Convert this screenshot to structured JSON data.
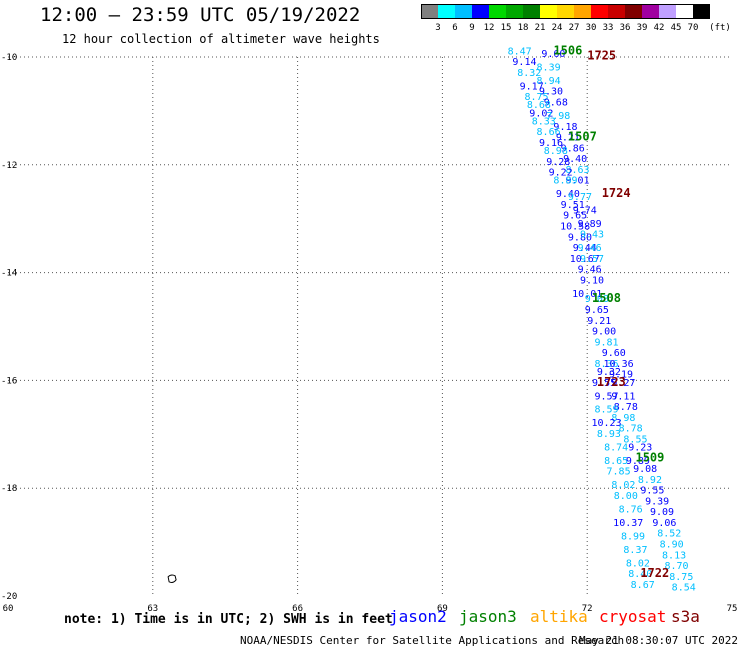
{
  "title": "12:00 – 23:59 UTC 05/19/2022",
  "subtitle": "12 hour collection of altimeter wave heights",
  "colorbar": {
    "unit": "(ft)",
    "colors": [
      "#808080",
      "#00ffff",
      "#00bfff",
      "#0000ff",
      "#00d800",
      "#00a800",
      "#008000",
      "#ffff00",
      "#ffd700",
      "#ffa500",
      "#ff0000",
      "#c80000",
      "#800000",
      "#a000a0",
      "#c0a0ff",
      "#ffffff",
      "#000000"
    ],
    "labels": [
      "3",
      "6",
      "9",
      "12",
      "15",
      "18",
      "21",
      "24",
      "27",
      "30",
      "33",
      "36",
      "39",
      "42",
      "45",
      "70"
    ]
  },
  "map": {
    "lon_ticks": [
      "60",
      "63",
      "66",
      "69",
      "72",
      "75"
    ],
    "lat_ticks": [
      "-10",
      "-12",
      "-14",
      "-16",
      "-18",
      "-20"
    ],
    "lon_min": 60,
    "lon_max": 75,
    "lat_min": -20,
    "lat_max": -10
  },
  "time_labels": [
    {
      "text": "1506",
      "lon": 71.6,
      "lat": -9.95,
      "color": "#008000"
    },
    {
      "text": "1725",
      "lon": 72.3,
      "lat": -10.05,
      "color": "#800000"
    },
    {
      "text": "1507",
      "lon": 71.9,
      "lat": -11.55,
      "color": "#008000"
    },
    {
      "text": "1724",
      "lon": 72.6,
      "lat": -12.6,
      "color": "#800000"
    },
    {
      "text": "1508",
      "lon": 72.4,
      "lat": -14.55,
      "color": "#008000"
    },
    {
      "text": "1723",
      "lon": 72.5,
      "lat": -16.1,
      "color": "#800000"
    },
    {
      "text": "1509",
      "lon": 73.3,
      "lat": -17.5,
      "color": "#008000"
    },
    {
      "text": "1722",
      "lon": 73.4,
      "lat": -19.65,
      "color": "#800000"
    }
  ],
  "wave_heights": [
    {
      "v": "8.47",
      "lon": 70.6,
      "lat": -9.95,
      "c": "#00bfff"
    },
    {
      "v": "9.60",
      "lon": 71.3,
      "lat": -10.0,
      "c": "#0000ff"
    },
    {
      "v": "9.14",
      "lon": 70.7,
      "lat": -10.15,
      "c": "#0000ff"
    },
    {
      "v": "8.39",
      "lon": 71.2,
      "lat": -10.25,
      "c": "#00bfff"
    },
    {
      "v": "8.32",
      "lon": 70.8,
      "lat": -10.35,
      "c": "#00bfff"
    },
    {
      "v": "8.94",
      "lon": 71.2,
      "lat": -10.5,
      "c": "#00bfff"
    },
    {
      "v": "9.17",
      "lon": 70.85,
      "lat": -10.6,
      "c": "#0000ff"
    },
    {
      "v": "9.30",
      "lon": 71.25,
      "lat": -10.7,
      "c": "#0000ff"
    },
    {
      "v": "8.75",
      "lon": 70.95,
      "lat": -10.8,
      "c": "#00bfff"
    },
    {
      "v": "9.68",
      "lon": 71.35,
      "lat": -10.9,
      "c": "#0000ff"
    },
    {
      "v": "8.68",
      "lon": 71.0,
      "lat": -10.95,
      "c": "#00bfff"
    },
    {
      "v": "9.02",
      "lon": 71.05,
      "lat": -11.1,
      "c": "#0000ff"
    },
    {
      "v": "7.98",
      "lon": 71.4,
      "lat": -11.15,
      "c": "#00bfff"
    },
    {
      "v": "8.33",
      "lon": 71.1,
      "lat": -11.25,
      "c": "#00bfff"
    },
    {
      "v": "9.18",
      "lon": 71.55,
      "lat": -11.35,
      "c": "#0000ff"
    },
    {
      "v": "8.66",
      "lon": 71.2,
      "lat": -11.45,
      "c": "#00bfff"
    },
    {
      "v": "9.21",
      "lon": 71.6,
      "lat": -11.55,
      "c": "#0000ff"
    },
    {
      "v": "9.16",
      "lon": 71.25,
      "lat": -11.65,
      "c": "#0000ff"
    },
    {
      "v": "9.86",
      "lon": 71.7,
      "lat": -11.75,
      "c": "#0000ff"
    },
    {
      "v": "8.98",
      "lon": 71.35,
      "lat": -11.8,
      "c": "#00bfff"
    },
    {
      "v": "9.40",
      "lon": 71.75,
      "lat": -11.95,
      "c": "#0000ff"
    },
    {
      "v": "9.28",
      "lon": 71.4,
      "lat": -12.0,
      "c": "#0000ff"
    },
    {
      "v": "8.63",
      "lon": 71.8,
      "lat": -12.15,
      "c": "#00bfff"
    },
    {
      "v": "9.22",
      "lon": 71.45,
      "lat": -12.2,
      "c": "#0000ff"
    },
    {
      "v": "9.01",
      "lon": 71.8,
      "lat": -12.35,
      "c": "#0000ff"
    },
    {
      "v": "8.89",
      "lon": 71.55,
      "lat": -12.35,
      "c": "#00bfff"
    },
    {
      "v": "9.40",
      "lon": 71.6,
      "lat": -12.6,
      "c": "#0000ff"
    },
    {
      "v": "9.77",
      "lon": 71.85,
      "lat": -12.65,
      "c": "#00bfff"
    },
    {
      "v": "9.51",
      "lon": 71.7,
      "lat": -12.8,
      "c": "#0000ff"
    },
    {
      "v": "9.74",
      "lon": 71.95,
      "lat": -12.9,
      "c": "#0000ff"
    },
    {
      "v": "9.65",
      "lon": 71.75,
      "lat": -13.0,
      "c": "#0000ff"
    },
    {
      "v": "10.58",
      "lon": 71.75,
      "lat": -13.2,
      "c": "#0000ff"
    },
    {
      "v": "9.89",
      "lon": 72.05,
      "lat": -13.15,
      "c": "#0000ff"
    },
    {
      "v": "9.80",
      "lon": 71.85,
      "lat": -13.4,
      "c": "#0000ff"
    },
    {
      "v": "9.43",
      "lon": 72.1,
      "lat": -13.35,
      "c": "#00bfff"
    },
    {
      "v": "9.44",
      "lon": 71.95,
      "lat": -13.6,
      "c": "#0000ff"
    },
    {
      "v": "9.46",
      "lon": 72.05,
      "lat": -13.6,
      "c": "#00bfff"
    },
    {
      "v": "10.67",
      "lon": 71.95,
      "lat": -13.8,
      "c": "#0000ff"
    },
    {
      "v": "9.57",
      "lon": 72.1,
      "lat": -13.8,
      "c": "#00bfff"
    },
    {
      "v": "9.46",
      "lon": 72.05,
      "lat": -14.0,
      "c": "#0000ff"
    },
    {
      "v": "9.10",
      "lon": 72.1,
      "lat": -14.2,
      "c": "#0000ff"
    },
    {
      "v": "10.01",
      "lon": 72.0,
      "lat": -14.45,
      "c": "#0000ff"
    },
    {
      "v": "9.08",
      "lon": 72.2,
      "lat": -14.55,
      "c": "#00bfff"
    },
    {
      "v": "9.65",
      "lon": 72.2,
      "lat": -14.75,
      "c": "#0000ff"
    },
    {
      "v": "9.21",
      "lon": 72.25,
      "lat": -14.95,
      "c": "#0000ff"
    },
    {
      "v": "9.00",
      "lon": 72.35,
      "lat": -15.15,
      "c": "#0000ff"
    },
    {
      "v": "9.81",
      "lon": 72.4,
      "lat": -15.35,
      "c": "#00bfff"
    },
    {
      "v": "9.60",
      "lon": 72.55,
      "lat": -15.55,
      "c": "#0000ff"
    },
    {
      "v": "8.36",
      "lon": 72.4,
      "lat": -15.75,
      "c": "#00bfff"
    },
    {
      "v": "10.36",
      "lon": 72.65,
      "lat": -15.75,
      "c": "#0000ff"
    },
    {
      "v": "9.32",
      "lon": 72.45,
      "lat": -15.9,
      "c": "#0000ff"
    },
    {
      "v": "9.19",
      "lon": 72.7,
      "lat": -15.95,
      "c": "#0000ff"
    },
    {
      "v": "9.55",
      "lon": 72.35,
      "lat": -16.1,
      "c": "#0000ff"
    },
    {
      "v": "9.27",
      "lon": 72.75,
      "lat": -16.1,
      "c": "#0000ff"
    },
    {
      "v": "9.57",
      "lon": 72.4,
      "lat": -16.35,
      "c": "#0000ff"
    },
    {
      "v": "9.11",
      "lon": 72.75,
      "lat": -16.35,
      "c": "#0000ff"
    },
    {
      "v": "8.78",
      "lon": 72.8,
      "lat": -16.55,
      "c": "#0000ff"
    },
    {
      "v": "8.59",
      "lon": 72.4,
      "lat": -16.6,
      "c": "#00bfff"
    },
    {
      "v": "8.98",
      "lon": 72.75,
      "lat": -16.75,
      "c": "#00bfff"
    },
    {
      "v": "10.23",
      "lon": 72.4,
      "lat": -16.85,
      "c": "#0000ff"
    },
    {
      "v": "8.78",
      "lon": 72.9,
      "lat": -16.95,
      "c": "#00bfff"
    },
    {
      "v": "8.93",
      "lon": 72.45,
      "lat": -17.05,
      "c": "#00bfff"
    },
    {
      "v": "8.55",
      "lon": 73.0,
      "lat": -17.15,
      "c": "#00bfff"
    },
    {
      "v": "8.74",
      "lon": 72.6,
      "lat": -17.3,
      "c": "#00bfff"
    },
    {
      "v": "9.23",
      "lon": 73.1,
      "lat": -17.3,
      "c": "#0000ff"
    },
    {
      "v": "8.65",
      "lon": 72.6,
      "lat": -17.55,
      "c": "#00bfff"
    },
    {
      "v": "9.89",
      "lon": 73.05,
      "lat": -17.55,
      "c": "#0000ff"
    },
    {
      "v": "7.85",
      "lon": 72.65,
      "lat": -17.75,
      "c": "#00bfff"
    },
    {
      "v": "9.08",
      "lon": 73.2,
      "lat": -17.7,
      "c": "#0000ff"
    },
    {
      "v": "8.92",
      "lon": 73.3,
      "lat": -17.9,
      "c": "#00bfff"
    },
    {
      "v": "8.02",
      "lon": 72.75,
      "lat": -18.0,
      "c": "#00bfff"
    },
    {
      "v": "9.55",
      "lon": 73.35,
      "lat": -18.1,
      "c": "#0000ff"
    },
    {
      "v": "8.00",
      "lon": 72.8,
      "lat": -18.2,
      "c": "#00bfff"
    },
    {
      "v": "9.39",
      "lon": 73.45,
      "lat": -18.3,
      "c": "#0000ff"
    },
    {
      "v": "8.76",
      "lon": 72.9,
      "lat": -18.45,
      "c": "#00bfff"
    },
    {
      "v": "9.09",
      "lon": 73.55,
      "lat": -18.5,
      "c": "#0000ff"
    },
    {
      "v": "10.37",
      "lon": 72.85,
      "lat": -18.7,
      "c": "#0000ff"
    },
    {
      "v": "9.06",
      "lon": 73.6,
      "lat": -18.7,
      "c": "#0000ff"
    },
    {
      "v": "8.99",
      "lon": 72.95,
      "lat": -18.95,
      "c": "#00bfff"
    },
    {
      "v": "8.52",
      "lon": 73.7,
      "lat": -18.9,
      "c": "#00bfff"
    },
    {
      "v": "8.90",
      "lon": 73.75,
      "lat": -19.1,
      "c": "#00bfff"
    },
    {
      "v": "8.37",
      "lon": 73.0,
      "lat": -19.2,
      "c": "#00bfff"
    },
    {
      "v": "8.13",
      "lon": 73.8,
      "lat": -19.3,
      "c": "#00bfff"
    },
    {
      "v": "8.02",
      "lon": 73.05,
      "lat": -19.45,
      "c": "#00bfff"
    },
    {
      "v": "8.70",
      "lon": 73.85,
      "lat": -19.5,
      "c": "#00bfff"
    },
    {
      "v": "8.40",
      "lon": 73.1,
      "lat": -19.65,
      "c": "#00bfff"
    },
    {
      "v": "8.75",
      "lon": 73.95,
      "lat": -19.7,
      "c": "#00bfff"
    },
    {
      "v": "8.67",
      "lon": 73.15,
      "lat": -19.85,
      "c": "#00bfff"
    },
    {
      "v": "8.54",
      "lon": 74.0,
      "lat": -19.9,
      "c": "#00bfff"
    }
  ],
  "island": {
    "lon": 63.4,
    "lat": -19.7
  },
  "footer": {
    "note": "note: 1) Time is in UTC; 2) SWH is in feet",
    "satellites": [
      {
        "name": "jason2",
        "color": "#0000ff"
      },
      {
        "name": "jason3",
        "color": "#008000"
      },
      {
        "name": "altika",
        "color": "#ffa500"
      },
      {
        "name": "cryosat",
        "color": "#ff0000"
      },
      {
        "name": "s3a",
        "color": "#800000"
      }
    ],
    "credit": "NOAA/NESDIS Center for Satellite Applications and Research",
    "timestamp": "May 21 08:30:07 UTC 2022"
  }
}
